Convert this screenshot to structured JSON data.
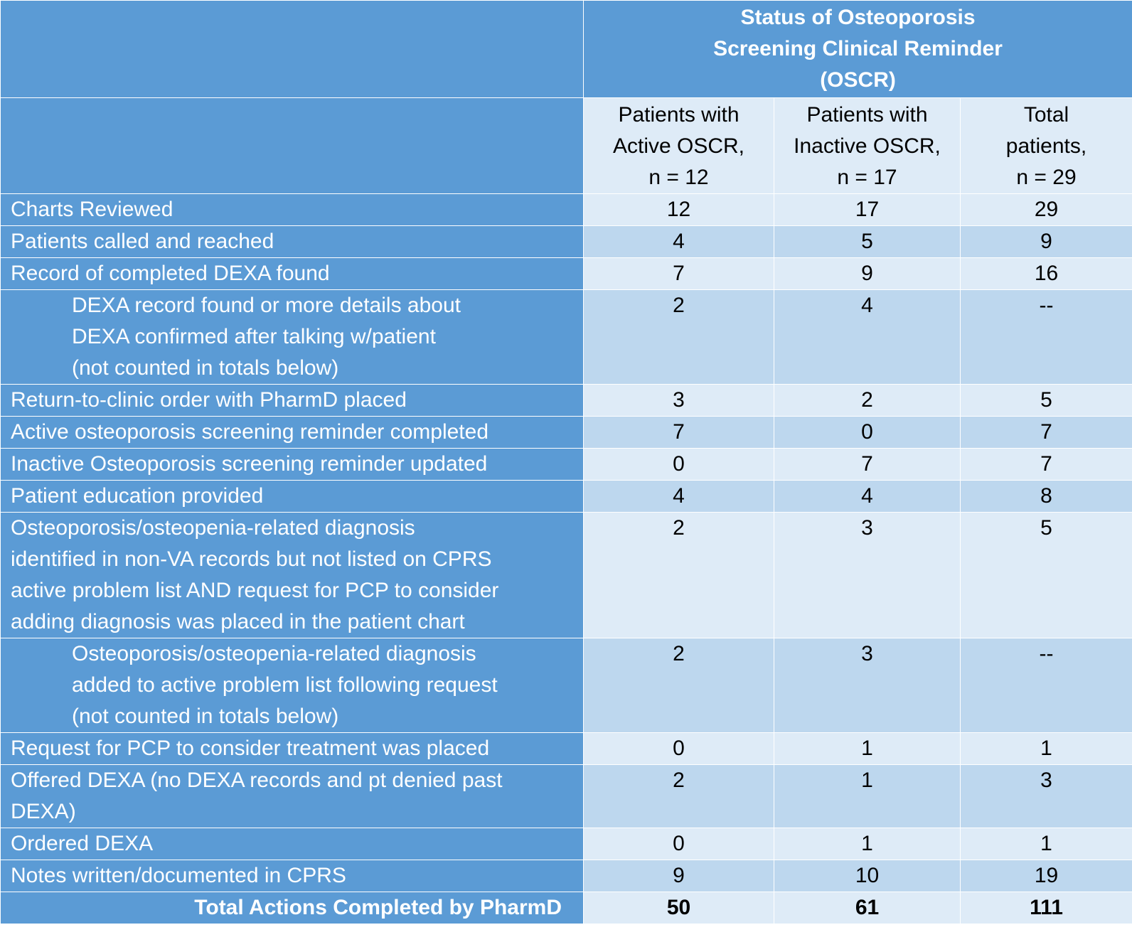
{
  "title": [
    "Status of Osteoporosis",
    "Screening Clinical Reminder",
    "(OSCR)"
  ],
  "columns": [
    [
      "Patients with",
      "Active OSCR,",
      "n = 12"
    ],
    [
      "Patients with",
      "Inactive OSCR,",
      "n = 17"
    ],
    [
      "Total",
      "patients,",
      "n = 29"
    ]
  ],
  "rows": [
    {
      "label": [
        "Charts Reviewed"
      ],
      "values": [
        "12",
        "17",
        "29"
      ]
    },
    {
      "label": [
        "Patients called and reached"
      ],
      "values": [
        "4",
        "5",
        "9"
      ]
    },
    {
      "label": [
        "Record of completed DEXA found"
      ],
      "values": [
        "7",
        "9",
        "16"
      ]
    },
    {
      "label": [
        "DEXA record found or more details about",
        "DEXA confirmed after talking w/patient",
        "(not counted in totals below)"
      ],
      "values": [
        "2",
        "4",
        "--"
      ]
    },
    {
      "label": [
        "Return-to-clinic order with PharmD placed"
      ],
      "values": [
        "3",
        "2",
        "5"
      ]
    },
    {
      "label": [
        "Active osteoporosis screening reminder completed"
      ],
      "values": [
        "7",
        "0",
        "7"
      ]
    },
    {
      "label": [
        "Inactive Osteoporosis screening reminder updated"
      ],
      "values": [
        "0",
        "7",
        "7"
      ]
    },
    {
      "label": [
        "Patient education provided"
      ],
      "values": [
        "4",
        "4",
        "8"
      ]
    },
    {
      "label": [
        "Osteoporosis/osteopenia-related diagnosis",
        "identified in non-VA records but not listed on CPRS",
        "active problem list AND request for PCP to consider",
        "adding diagnosis was placed in the patient chart"
      ],
      "values": [
        "2",
        "3",
        "5"
      ]
    },
    {
      "label": [
        "Osteoporosis/osteopenia-related diagnosis",
        "added to active problem list following request",
        "(not counted in totals below)"
      ],
      "values": [
        "2",
        "3",
        "--"
      ]
    },
    {
      "label": [
        "Request for PCP to consider treatment was placed"
      ],
      "values": [
        "0",
        "1",
        "1"
      ]
    },
    {
      "label": [
        "Offered DEXA (no DEXA records and pt denied past",
        "DEXA)"
      ],
      "values": [
        "2",
        "1",
        "3"
      ]
    },
    {
      "label": [
        "Ordered DEXA"
      ],
      "values": [
        "0",
        "1",
        "1"
      ]
    },
    {
      "label": [
        "Notes written/documented in CPRS"
      ],
      "values": [
        "9",
        "10",
        "19"
      ]
    }
  ],
  "total": {
    "label": "Total Actions Completed by PharmD",
    "values": [
      "50",
      "61",
      "111"
    ]
  }
}
